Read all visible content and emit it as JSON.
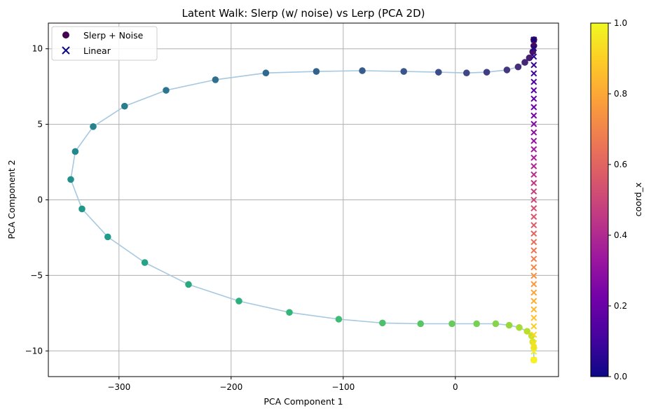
{
  "chart_data": {
    "type": "scatter",
    "title": "Latent Walk: Slerp (w/ noise) vs Lerp (PCA 2D)",
    "xlabel": "PCA Component 1",
    "ylabel": "PCA Component 2",
    "xlim": [
      -363,
      92
    ],
    "ylim": [
      -11.7,
      11.7
    ],
    "xticks": [
      -300,
      -200,
      -100,
      0
    ],
    "xtick_labels": [
      "−300",
      "−200",
      "−100",
      "0"
    ],
    "yticks": [
      -10,
      -5,
      0,
      5,
      10
    ],
    "ytick_labels": [
      "−10",
      "−5",
      "0",
      "5",
      "10"
    ],
    "grid": true,
    "legend_position": "top-left",
    "legend": [
      {
        "label": "Slerp + Noise",
        "marker": "circle",
        "color": "#440154"
      },
      {
        "label": "Linear",
        "marker": "x",
        "color": "#0d0887"
      }
    ],
    "colorbar": {
      "label": "coord_x",
      "range": [
        0,
        1
      ],
      "ticks": [
        0.0,
        0.2,
        0.4,
        0.6,
        0.8,
        1.0
      ],
      "tick_labels": [
        "0.0",
        "0.2",
        "0.4",
        "0.6",
        "0.8",
        "1.0"
      ],
      "colormap": "plasma"
    },
    "series": [
      {
        "name": "Slerp + Noise",
        "colormap": "viridis",
        "path_color": "#a6c8e0",
        "x": [
          70,
          70,
          69,
          66,
          62,
          56,
          46,
          28,
          10,
          -15,
          -46,
          -83,
          -124,
          -169,
          -214,
          -258,
          -295,
          -323,
          -339,
          -343,
          -333,
          -310,
          -277,
          -238,
          -193,
          -148,
          -104,
          -65,
          -31,
          -3,
          19,
          36,
          48,
          57,
          64,
          68,
          69,
          70,
          70
        ],
        "y": [
          10.6,
          10.2,
          9.8,
          9.4,
          9.1,
          8.8,
          8.6,
          8.45,
          8.4,
          8.45,
          8.5,
          8.55,
          8.5,
          8.4,
          7.95,
          7.25,
          6.2,
          4.85,
          3.2,
          1.35,
          -0.6,
          -2.45,
          -4.15,
          -5.6,
          -6.7,
          -7.45,
          -7.9,
          -8.15,
          -8.2,
          -8.2,
          -8.2,
          -8.2,
          -8.3,
          -8.45,
          -8.7,
          -9.0,
          -9.4,
          -9.8,
          -10.6
        ],
        "c": [
          0.0,
          0.026,
          0.053,
          0.079,
          0.105,
          0.132,
          0.158,
          0.184,
          0.211,
          0.237,
          0.263,
          0.289,
          0.316,
          0.342,
          0.368,
          0.395,
          0.421,
          0.447,
          0.474,
          0.5,
          0.526,
          0.553,
          0.579,
          0.605,
          0.632,
          0.658,
          0.684,
          0.711,
          0.737,
          0.763,
          0.789,
          0.816,
          0.842,
          0.868,
          0.895,
          0.921,
          0.947,
          0.974,
          1.0
        ]
      },
      {
        "name": "Linear",
        "colormap": "plasma",
        "x_constant": 70,
        "y_start": 10.6,
        "y_end": -10.6,
        "n_points": 39,
        "c_start": 0.0,
        "c_end": 1.0
      }
    ]
  }
}
